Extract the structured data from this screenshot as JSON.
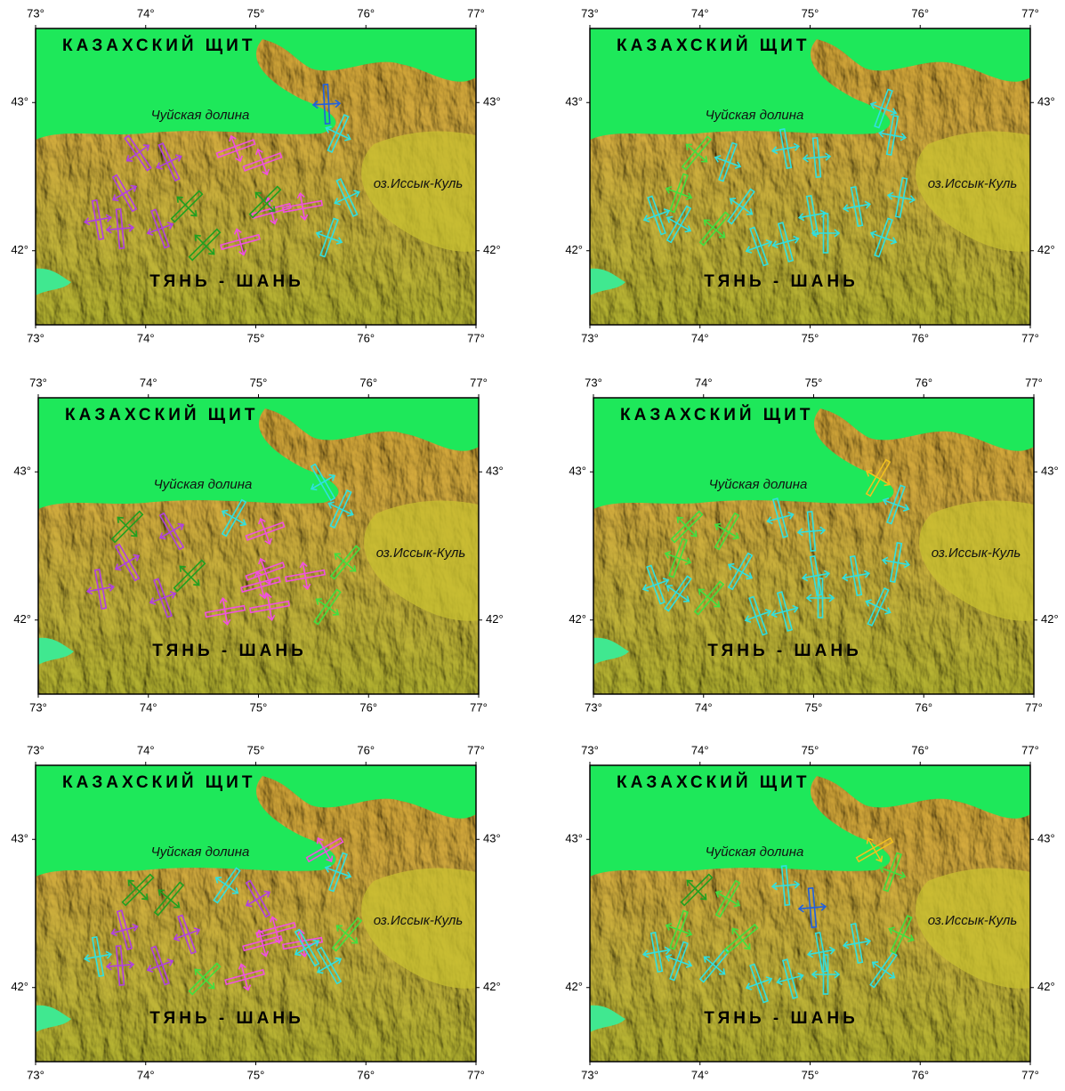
{
  "maps": [
    {
      "lon_range": [
        73,
        77
      ],
      "lat_range": [
        41.5,
        43.5
      ],
      "lon_ticks": [
        {
          "value": 73,
          "label": "73°"
        },
        {
          "value": 74,
          "label": "74°"
        },
        {
          "value": 75,
          "label": "75°"
        },
        {
          "value": 76,
          "label": "76°"
        },
        {
          "value": 77,
          "label": "77°"
        }
      ],
      "lat_ticks": [
        {
          "value": 42,
          "label": "42°"
        },
        {
          "value": 43,
          "label": "43°"
        }
      ],
      "labels": [
        "КАЗАХСКИЙ ЩИТ",
        "Чуйская долина",
        "оз.Иссык-Куль",
        "ТЯНЬ - ШАНЬ"
      ]
    },
    {
      "lon_range": [
        73,
        77
      ],
      "lat_range": [
        41.5,
        43.5
      ],
      "lon_ticks": [
        {
          "value": 73,
          "label": "73°"
        },
        {
          "value": 74,
          "label": "74°"
        },
        {
          "value": 75,
          "label": "75°"
        },
        {
          "value": 76,
          "label": "76°"
        },
        {
          "value": 77,
          "label": "77°"
        }
      ],
      "lat_ticks": [
        {
          "value": 42,
          "label": "42°"
        },
        {
          "value": 43,
          "label": "43°"
        }
      ],
      "labels": [
        "КАЗАХСКИЙ ЩИТ",
        "Чуйская долина",
        "оз.Иссык-Куль",
        "ТЯНЬ - ШАНЬ"
      ]
    },
    {
      "lon_range": [
        73,
        77
      ],
      "lat_range": [
        41.5,
        43.5
      ],
      "lon_ticks": [
        {
          "value": 73,
          "label": "73°"
        },
        {
          "value": 74,
          "label": "74°"
        },
        {
          "value": 75,
          "label": "75°"
        },
        {
          "value": 76,
          "label": "76°"
        },
        {
          "value": 77,
          "label": "77°"
        }
      ],
      "lat_ticks": [
        {
          "value": 42,
          "label": "42°"
        },
        {
          "value": 43,
          "label": "43°"
        }
      ],
      "labels": [
        "КАЗАХСКИЙ ЩИТ",
        "Чуйская долина",
        "оз.Иссык-Куль",
        "ТЯНЬ - ШАНЬ"
      ]
    },
    {
      "lon_range": [
        73,
        77
      ],
      "lat_range": [
        41.5,
        43.5
      ],
      "lon_ticks": [
        {
          "value": 73,
          "label": "73°"
        },
        {
          "value": 74,
          "label": "74°"
        },
        {
          "value": 75,
          "label": "75°"
        },
        {
          "value": 76,
          "label": "76°"
        },
        {
          "value": 77,
          "label": "77°"
        }
      ],
      "lat_ticks": [
        {
          "value": 42,
          "label": "42°"
        },
        {
          "value": 43,
          "label": "43°"
        }
      ],
      "labels": [
        "КАЗАХСКИЙ ЩИТ",
        "Чуйская долина",
        "оз.Иссык-Куль",
        "ТЯНЬ - ШАНЬ"
      ]
    },
    {
      "lon_range": [
        73,
        77
      ],
      "lat_range": [
        41.5,
        43.5
      ],
      "lon_ticks": [
        {
          "value": 73,
          "label": "73°"
        },
        {
          "value": 74,
          "label": "74°"
        },
        {
          "value": 75,
          "label": "75°"
        },
        {
          "value": 76,
          "label": "76°"
        },
        {
          "value": 77,
          "label": "77°"
        }
      ],
      "lat_ticks": [
        {
          "value": 42,
          "label": "42°"
        },
        {
          "value": 43,
          "label": "43°"
        }
      ],
      "labels": [
        "КАЗАХСКИЙ ЩИТ",
        "Чуйская долина",
        "оз.Иссык-Куль",
        "ТЯНЬ - ШАНЬ"
      ]
    },
    {
      "lon_range": [
        73,
        77
      ],
      "lat_range": [
        41.5,
        43.5
      ],
      "lon_ticks": [
        {
          "value": 73,
          "label": "73°"
        },
        {
          "value": 74,
          "label": "74°"
        },
        {
          "value": 75,
          "label": "75°"
        },
        {
          "value": 76,
          "label": "76°"
        },
        {
          "value": 77,
          "label": "77°"
        }
      ],
      "lat_ticks": [
        {
          "value": 42,
          "label": "42°"
        },
        {
          "value": 43,
          "label": "43°"
        }
      ],
      "labels": [
        "КАЗАХСКИЙ ЩИТ",
        "Чуйская долина",
        "оз.Иссык-Куль",
        "ТЯНЬ - ШАНЬ"
      ]
    }
  ]
}
